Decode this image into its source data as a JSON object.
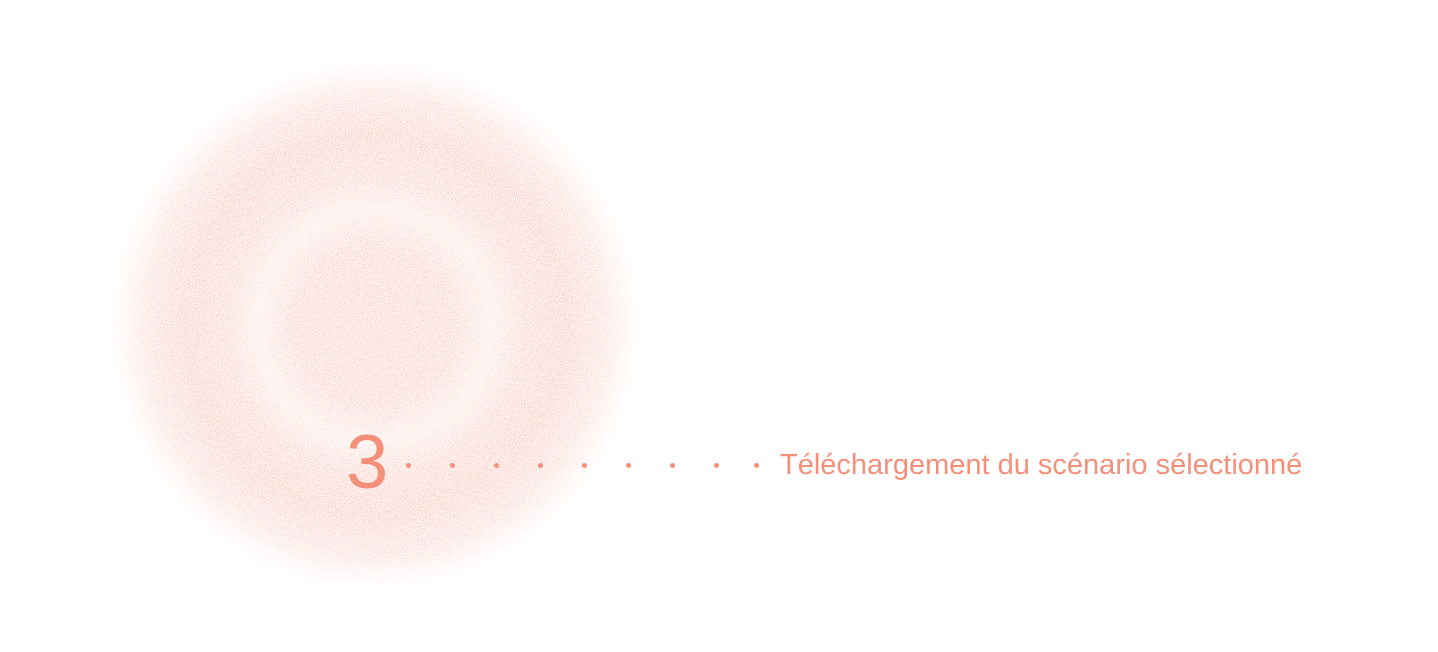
{
  "step": {
    "number": "3",
    "label": "Téléchargement du scénario sélectionné"
  },
  "colors": {
    "accent": "#F4907A",
    "accent_light": "#F8B4A5",
    "background": "#FFFFFF"
  },
  "icons": {
    "orb": "speckled-orb-icon",
    "connector": "dotted-connector"
  }
}
